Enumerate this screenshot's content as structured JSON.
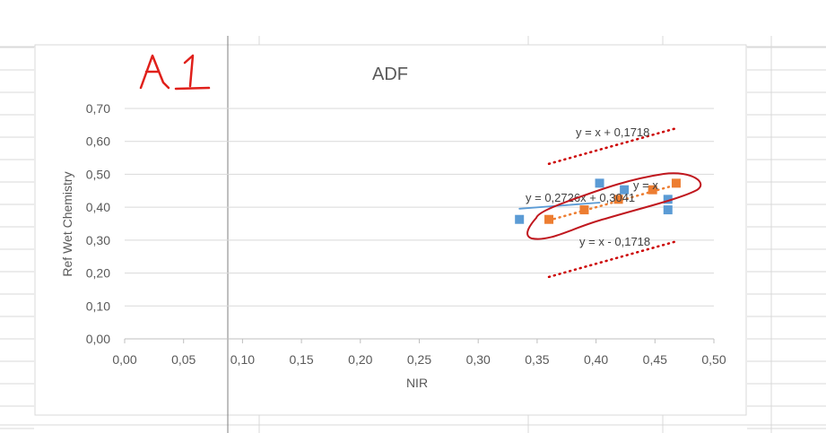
{
  "annotation": {
    "handwritten_label": "A1"
  },
  "chart_data": {
    "type": "scatter",
    "title": "ADF",
    "xlabel": "NIR",
    "ylabel": "Ref Wet Chemistry",
    "xlim": [
      0,
      0.5
    ],
    "ylim": [
      0,
      0.7
    ],
    "x_ticks": [
      "0,00",
      "0,05",
      "0,10",
      "0,15",
      "0,20",
      "0,25",
      "0,30",
      "0,35",
      "0,40",
      "0,45",
      "0,50"
    ],
    "y_ticks": [
      "0,00",
      "0,10",
      "0,20",
      "0,30",
      "0,40",
      "0,50",
      "0,60",
      "0,70"
    ],
    "grid": "horizontal",
    "series": [
      {
        "marker": "square",
        "color": "#5b9bd5",
        "points": [
          {
            "x": 0.335,
            "y": 0.363
          },
          {
            "x": 0.403,
            "y": 0.473
          },
          {
            "x": 0.424,
            "y": 0.453
          },
          {
            "x": 0.461,
            "y": 0.392
          },
          {
            "x": 0.461,
            "y": 0.424
          }
        ]
      },
      {
        "marker": "square",
        "color": "#ed7d31",
        "points": [
          {
            "x": 0.36,
            "y": 0.363
          },
          {
            "x": 0.39,
            "y": 0.392
          },
          {
            "x": 0.419,
            "y": 0.424
          },
          {
            "x": 0.448,
            "y": 0.453
          },
          {
            "x": 0.468,
            "y": 0.473
          }
        ]
      }
    ],
    "lines": [
      {
        "label": "y = 0,2726x + 0,3041",
        "slope": 0.2726,
        "intercept": 0.3041,
        "x_range": [
          0.335,
          0.403
        ],
        "style": "solid",
        "color": "#5b9bd5"
      },
      {
        "label": "y = x",
        "slope": 1,
        "intercept": 0,
        "x_range": [
          0.36,
          0.468
        ],
        "style": "dotted",
        "color": "#ed7d31"
      },
      {
        "label": "y = x + 0,1718",
        "slope": 1,
        "intercept": 0.1718,
        "x_range": [
          0.36,
          0.468
        ],
        "style": "dotted",
        "color": "#cc0000"
      },
      {
        "label": "y = x - 0,1718",
        "slope": 1,
        "intercept": -0.1718,
        "x_range": [
          0.36,
          0.468
        ],
        "style": "dotted",
        "color": "#cc0000"
      }
    ]
  }
}
